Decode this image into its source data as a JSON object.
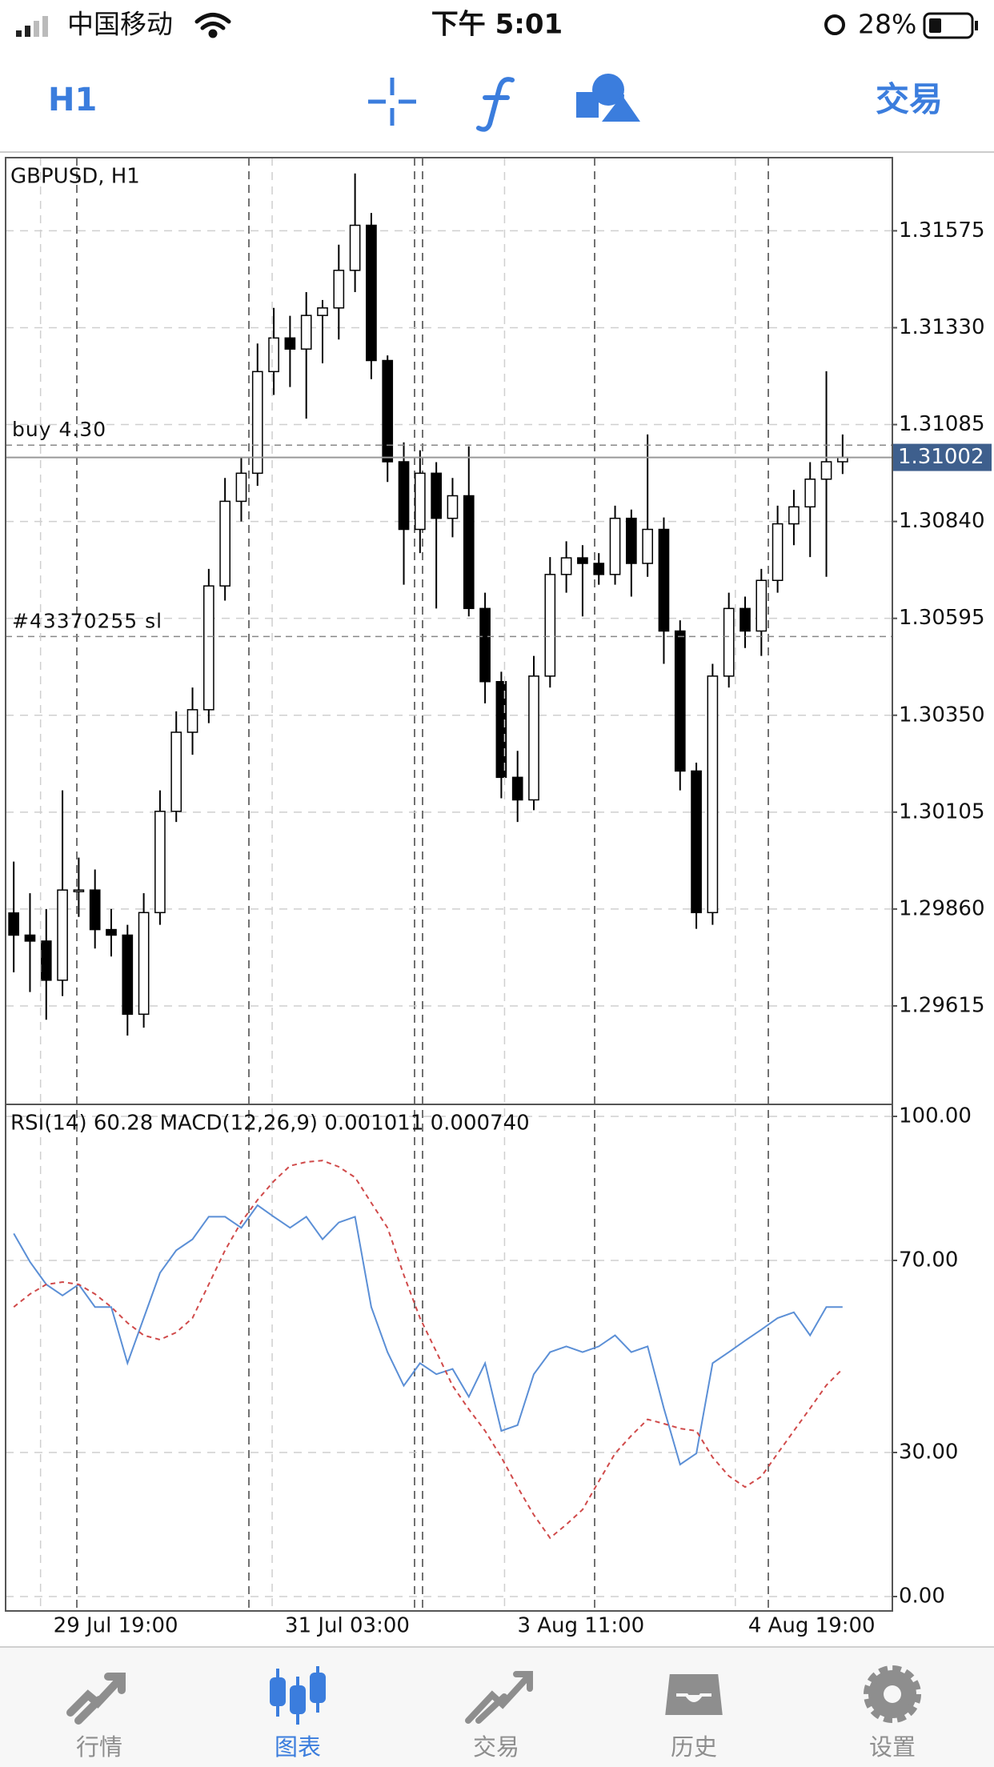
{
  "status_bar": {
    "carrier": "中国移动",
    "time": "下午 5:01",
    "battery": "28%"
  },
  "toolbar": {
    "timeframe": "H1",
    "trade": "交易"
  },
  "chart_data": [
    {
      "type": "candlestick",
      "title": "GBPUSD, H1",
      "grid": true,
      "up_color": "#ffffff",
      "down_color": "#000000",
      "ylim": [
        1.29366,
        1.3176
      ],
      "yticks": [
        1.31575,
        {
          "value": 1.3133,
          "label": "1.31330"
        },
        1.31085,
        {
          "value": 1.3084,
          "label": "1.30840"
        },
        1.30595,
        {
          "value": 1.3035,
          "label": "1.30350"
        },
        1.30105,
        {
          "value": 1.2986,
          "label": "1.29860"
        },
        1.29615
      ],
      "current_price": 1.31002,
      "levels": [
        {
          "label": "buy 4.30",
          "value": 1.31033
        },
        {
          "label": "#43370255 sl",
          "value": 1.30549
        }
      ],
      "candles": [
        [
          1.2985,
          1.2998,
          1.297,
          1.29794
        ],
        [
          1.29794,
          1.299,
          1.2965,
          1.29779
        ],
        [
          1.29779,
          1.2986,
          1.2958,
          1.2968
        ],
        [
          1.2968,
          1.3016,
          1.2964,
          1.29908
        ],
        [
          1.29908,
          1.2999,
          1.2984,
          1.29908
        ],
        [
          1.29908,
          1.2996,
          1.2976,
          1.29808
        ],
        [
          1.29808,
          1.2986,
          1.2974,
          1.29794
        ],
        [
          1.29794,
          1.2982,
          1.2954,
          1.29594
        ],
        [
          1.29594,
          1.299,
          1.2956,
          1.29851
        ],
        [
          1.29851,
          1.3016,
          1.2982,
          1.30107
        ],
        [
          1.30107,
          1.3036,
          1.3008,
          1.30307
        ],
        [
          1.30307,
          1.3042,
          1.3025,
          1.30364
        ],
        [
          1.30364,
          1.3072,
          1.3033,
          1.30677
        ],
        [
          1.30677,
          1.3095,
          1.3064,
          1.30891
        ],
        [
          1.30891,
          1.31,
          1.3084,
          1.30962
        ],
        [
          1.30962,
          1.3129,
          1.3093,
          1.31219
        ],
        [
          1.31219,
          1.3138,
          1.3116,
          1.31304
        ],
        [
          1.31304,
          1.3136,
          1.3118,
          1.31276
        ],
        [
          1.31276,
          1.3142,
          1.311,
          1.31361
        ],
        [
          1.31361,
          1.314,
          1.3124,
          1.3138
        ],
        [
          1.3138,
          1.3154,
          1.313,
          1.31475
        ],
        [
          1.31475,
          1.3172,
          1.3142,
          1.31589
        ],
        [
          1.31589,
          1.3162,
          1.312,
          1.31247
        ],
        [
          1.31247,
          1.3126,
          1.3094,
          1.30991
        ],
        [
          1.30991,
          1.3104,
          1.3068,
          1.3082
        ],
        [
          1.3082,
          1.3102,
          1.3076,
          1.30962
        ],
        [
          1.30962,
          1.3099,
          1.3062,
          1.30848
        ],
        [
          1.30848,
          1.3095,
          1.308,
          1.30905
        ],
        [
          1.30905,
          1.3103,
          1.306,
          1.3062
        ],
        [
          1.3062,
          1.3066,
          1.3038,
          1.30435
        ],
        [
          1.30435,
          1.3046,
          1.3014,
          1.30193
        ],
        [
          1.30193,
          1.3026,
          1.3008,
          1.30136
        ],
        [
          1.30136,
          1.305,
          1.3011,
          1.30449
        ],
        [
          1.30449,
          1.3075,
          1.3042,
          1.30706
        ],
        [
          1.30706,
          1.3079,
          1.3066,
          1.30748
        ],
        [
          1.30748,
          1.3078,
          1.306,
          1.30734
        ],
        [
          1.30734,
          1.3076,
          1.3068,
          1.30706
        ],
        [
          1.30706,
          1.3088,
          1.3068,
          1.30848
        ],
        [
          1.30848,
          1.3087,
          1.3065,
          1.30734
        ],
        [
          1.30734,
          1.3106,
          1.307,
          1.3082
        ],
        [
          1.3082,
          1.3085,
          1.3048,
          1.30563
        ],
        [
          1.30563,
          1.3059,
          1.3016,
          1.30209
        ],
        [
          1.30209,
          1.3023,
          1.2981,
          1.29851
        ],
        [
          1.29851,
          1.3048,
          1.2982,
          1.30449
        ],
        [
          1.30449,
          1.3066,
          1.3042,
          1.3062
        ],
        [
          1.3062,
          1.3065,
          1.3052,
          1.30563
        ],
        [
          1.30563,
          1.3072,
          1.305,
          1.30691
        ],
        [
          1.30691,
          1.3088,
          1.3066,
          1.30834
        ],
        [
          1.30834,
          1.3092,
          1.3078,
          1.30877
        ],
        [
          1.30877,
          1.3099,
          1.3075,
          1.30947
        ],
        [
          1.30947,
          1.3122,
          1.307,
          1.30991
        ],
        [
          1.30991,
          1.3106,
          1.3096,
          1.31002
        ]
      ]
    },
    {
      "type": "line",
      "title": "RSI(14) 60.28 MACD(12,26,9) 0.001011 0.000740",
      "grid": true,
      "ylim": [
        0,
        100
      ],
      "yticks": [
        {
          "value": 100,
          "label": "100.00"
        },
        {
          "value": 70,
          "label": "70.00"
        },
        {
          "value": 30,
          "label": "30.00"
        },
        {
          "value": 0,
          "label": "0.00"
        }
      ],
      "xticks": [
        {
          "value": 1.65,
          "label": "29 Jul 19:00"
        },
        {
          "value": 15.9,
          "label": "31 Jul 03:00"
        },
        {
          "value": 30.2,
          "label": "3 Aug 11:00"
        },
        {
          "value": 44.4,
          "label": "4 Aug 19:00"
        }
      ],
      "series": [
        {
          "color": "#5b8fd6",
          "style": "solid",
          "values": [
            75.6,
            69.7,
            65.0,
            62.7,
            65.0,
            60.3,
            60.3,
            48.6,
            58.0,
            67.4,
            72.1,
            74.4,
            79.1,
            79.1,
            76.8,
            81.5,
            79.1,
            76.8,
            79.1,
            74.4,
            77.9,
            79.1,
            60.3,
            50.9,
            43.9,
            48.6,
            46.3,
            47.4,
            41.6,
            48.6,
            34.5,
            35.7,
            46.3,
            50.9,
            52.1,
            50.9,
            52.1,
            54.4,
            50.9,
            52.1,
            39.2,
            27.5,
            29.8,
            48.6,
            50.9,
            53.3,
            55.6,
            58.0,
            59.2,
            54.4,
            60.3,
            60.28
          ]
        },
        {
          "color": "#d04a4a",
          "style": "dashed",
          "values": [
            60.3,
            63,
            65,
            65.5,
            65,
            63,
            60.3,
            57,
            54.4,
            53.5,
            55,
            58,
            65,
            72.1,
            78,
            82.6,
            86.5,
            89.7,
            90.5,
            90.8,
            89.5,
            87.3,
            82,
            76.8,
            67,
            58,
            51,
            43.9,
            39,
            34.5,
            29,
            22.8,
            17,
            12.2,
            15,
            18.1,
            24,
            29.8,
            33.5,
            36.9,
            36,
            35,
            34.5,
            29,
            25.1,
            22.8,
            25,
            29.8,
            34.5,
            39.2,
            44,
            47.4
          ]
        }
      ]
    }
  ],
  "tab_bar": {
    "tabs": [
      "行情",
      "图表",
      "交易",
      "历史",
      "设置"
    ],
    "active": 1
  }
}
